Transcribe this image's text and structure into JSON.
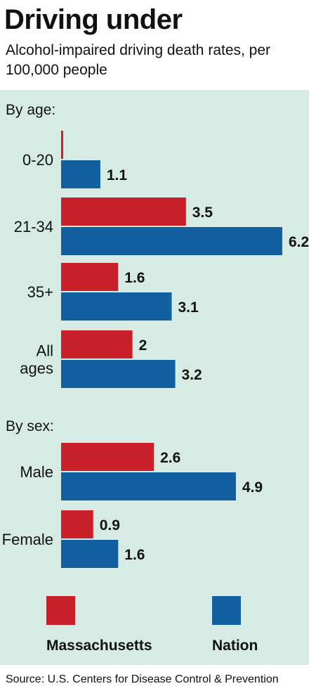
{
  "header": {
    "title": "Driving under",
    "subtitle": "Alcohol-impaired driving death rates, per 100,000 people"
  },
  "source": "Source: U.S. Centers for Disease Control & Prevention",
  "chart_data": {
    "type": "bar",
    "orientation": "horizontal",
    "colors": {
      "Massachusetts": "#c8202a",
      "Nation": "#12609f"
    },
    "sections": [
      {
        "heading": "By age:",
        "categories": [
          {
            "label": [
              "0-20"
            ],
            "values": {
              "Massachusetts": null,
              "Nation": 1.1
            }
          },
          {
            "label": [
              "21-34"
            ],
            "values": {
              "Massachusetts": 3.5,
              "Nation": 6.2
            }
          },
          {
            "label": [
              "35+"
            ],
            "values": {
              "Massachusetts": 1.6,
              "Nation": 3.1
            }
          },
          {
            "label": [
              "All",
              "ages"
            ],
            "values": {
              "Massachusetts": 2,
              "Nation": 3.2
            }
          }
        ]
      },
      {
        "heading": "By sex:",
        "categories": [
          {
            "label": [
              "Male"
            ],
            "values": {
              "Massachusetts": 2.6,
              "Nation": 4.9
            }
          },
          {
            "label": [
              "Female"
            ],
            "values": {
              "Massachusetts": 0.9,
              "Nation": 1.6
            }
          }
        ]
      }
    ],
    "series": [
      {
        "name": "Massachusetts",
        "color": "#c8202a"
      },
      {
        "name": "Nation",
        "color": "#12609f"
      }
    ],
    "legend": "bottom",
    "xlim": [
      0,
      6.2
    ],
    "grid": false
  }
}
